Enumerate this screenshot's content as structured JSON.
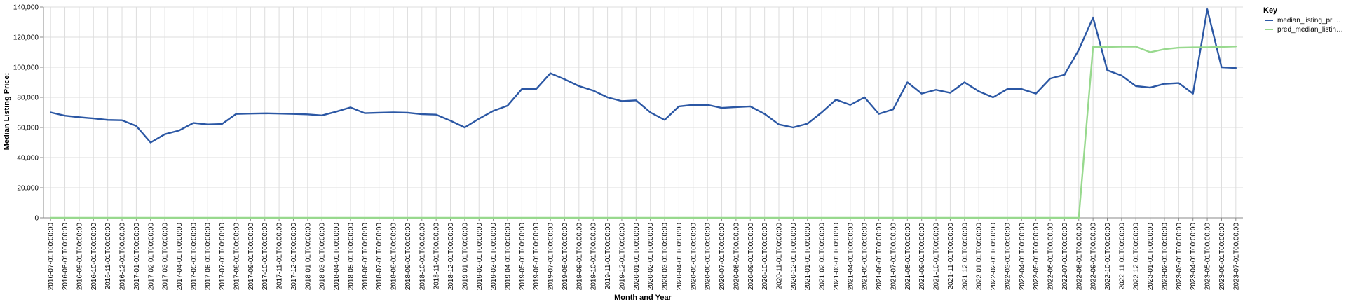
{
  "chart_data": {
    "type": "line",
    "xlabel": "Month and Year",
    "ylabel": "Median Listing Price:",
    "ylim": [
      0,
      140000
    ],
    "yticks": [
      "0",
      "20,000",
      "40,000",
      "60,000",
      "80,000",
      "100,000",
      "120,000",
      "140,000"
    ],
    "grid": true,
    "legend": {
      "title": "Key",
      "position": "top-right"
    },
    "categories": [
      "2016-07-01T00:00:00",
      "2016-08-01T00:00:00",
      "2016-09-01T00:00:00",
      "2016-10-01T00:00:00",
      "2016-11-01T00:00:00",
      "2016-12-01T00:00:00",
      "2017-01-01T00:00:00",
      "2017-02-01T00:00:00",
      "2017-03-01T00:00:00",
      "2017-04-01T00:00:00",
      "2017-05-01T00:00:00",
      "2017-06-01T00:00:00",
      "2017-07-01T00:00:00",
      "2017-08-01T00:00:00",
      "2017-09-01T00:00:00",
      "2017-10-01T00:00:00",
      "2017-11-01T00:00:00",
      "2017-12-01T00:00:00",
      "2018-01-01T00:00:00",
      "2018-03-01T00:00:00",
      "2018-04-01T00:00:00",
      "2018-05-01T00:00:00",
      "2018-06-01T00:00:00",
      "2018-07-01T00:00:00",
      "2018-08-01T00:00:00",
      "2018-09-01T00:00:00",
      "2018-10-01T00:00:00",
      "2018-11-01T00:00:00",
      "2018-12-01T00:00:00",
      "2019-01-01T00:00:00",
      "2019-02-01T00:00:00",
      "2019-03-01T00:00:00",
      "2019-04-01T00:00:00",
      "2019-05-01T00:00:00",
      "2019-06-01T00:00:00",
      "2019-07-01T00:00:00",
      "2019-08-01T00:00:00",
      "2019-09-01T00:00:00",
      "2019-10-01T00:00:00",
      "2019-11-01T00:00:00",
      "2019-12-01T00:00:00",
      "2020-01-01T00:00:00",
      "2020-02-01T00:00:00",
      "2020-03-01T00:00:00",
      "2020-04-01T00:00:00",
      "2020-05-01T00:00:00",
      "2020-06-01T00:00:00",
      "2020-07-01T00:00:00",
      "2020-08-01T00:00:00",
      "2020-09-01T00:00:00",
      "2020-10-01T00:00:00",
      "2020-11-01T00:00:00",
      "2020-12-01T00:00:00",
      "2021-01-01T00:00:00",
      "2021-02-01T00:00:00",
      "2021-03-01T00:00:00",
      "2021-04-01T00:00:00",
      "2021-05-01T00:00:00",
      "2021-06-01T00:00:00",
      "2021-07-01T00:00:00",
      "2021-08-01T00:00:00",
      "2021-09-01T00:00:00",
      "2021-10-01T00:00:00",
      "2021-11-01T00:00:00",
      "2021-12-01T00:00:00",
      "2022-01-01T00:00:00",
      "2022-02-01T00:00:00",
      "2022-03-01T00:00:00",
      "2022-04-01T00:00:00",
      "2022-05-01T00:00:00",
      "2022-06-01T00:00:00",
      "2022-07-01T00:00:00",
      "2022-08-01T00:00:00",
      "2022-09-01T00:00:00",
      "2022-10-01T00:00:00",
      "2022-11-01T00:00:00",
      "2022-12-01T00:00:00",
      "2023-01-01T00:00:00",
      "2023-02-01T00:00:00",
      "2023-03-01T00:00:00",
      "2023-04-01T00:00:00",
      "2023-05-01T00:00:00",
      "2023-06-01T00:00:00",
      "2023-07-01T00:00:00"
    ],
    "series": [
      {
        "name": "median_listing_pri…",
        "color": "#2b57a4",
        "values": [
          70000,
          67800,
          66800,
          66000,
          65000,
          64800,
          61000,
          50000,
          55500,
          58000,
          63000,
          62000,
          62300,
          69000,
          69200,
          69400,
          69200,
          69000,
          68700,
          68000,
          70500,
          73300,
          69500,
          69800,
          70000,
          69800,
          68800,
          68500,
          64500,
          60000,
          65800,
          71000,
          74500,
          85500,
          85500,
          96000,
          92000,
          87500,
          84500,
          80000,
          77500,
          78000,
          70000,
          65000,
          74000,
          75000,
          75000,
          73000,
          73500,
          74000,
          69000,
          62000,
          60000,
          62500,
          70000,
          78500,
          75000,
          80000,
          69000,
          72000,
          90000,
          82500,
          85000,
          83000,
          90000,
          84000,
          80000,
          85500,
          85500,
          82500,
          92500,
          95000,
          111500,
          133000,
          98000,
          94500,
          87500,
          86500,
          89000,
          89500,
          82500,
          138500,
          100000,
          99500
        ]
      },
      {
        "name": "pred_median_listin…",
        "color": "#98d98e",
        "values": [
          0,
          0,
          0,
          0,
          0,
          0,
          0,
          0,
          0,
          0,
          0,
          0,
          0,
          0,
          0,
          0,
          0,
          0,
          0,
          0,
          0,
          0,
          0,
          0,
          0,
          0,
          0,
          0,
          0,
          0,
          0,
          0,
          0,
          0,
          0,
          0,
          0,
          0,
          0,
          0,
          0,
          0,
          0,
          0,
          0,
          0,
          0,
          0,
          0,
          0,
          0,
          0,
          0,
          0,
          0,
          0,
          0,
          0,
          0,
          0,
          0,
          0,
          0,
          0,
          0,
          0,
          0,
          0,
          0,
          0,
          0,
          0,
          0,
          113500,
          113500,
          113700,
          113700,
          110000,
          112000,
          113000,
          113200,
          113300,
          113500,
          113800
        ]
      }
    ]
  }
}
